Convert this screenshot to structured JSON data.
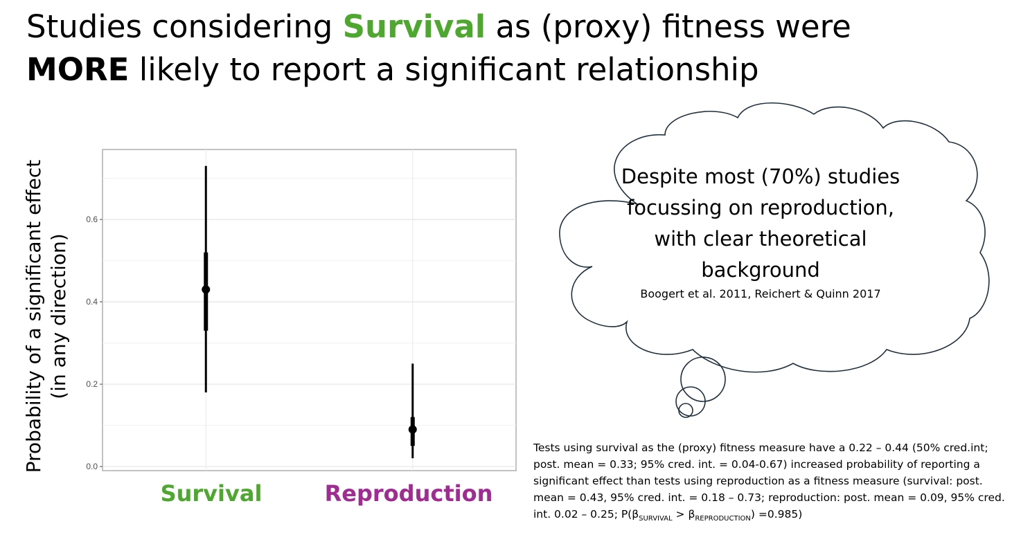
{
  "title": {
    "part1": "Studies considering ",
    "highlight": "Survival",
    "part2": " as (proxy) fitness were",
    "bold": "MORE",
    "part3": " likely to report a significant relationship"
  },
  "colors": {
    "survival": "#4ea72e",
    "reproduction": "#a02b93"
  },
  "chart_data": {
    "type": "scatter",
    "ylabel": "Probability of a significant effect\n(in any direction)",
    "ylim": [
      -0.01,
      0.77
    ],
    "yticks": [
      0.0,
      0.2,
      0.4,
      0.6
    ],
    "ytick_labels": [
      "0.0",
      "0.2",
      "0.4",
      "0.6"
    ],
    "grid": true,
    "categories": [
      "Survival",
      "Reproduction"
    ],
    "points": [
      {
        "category": "Survival",
        "mean": 0.43,
        "ci50": [
          0.33,
          0.52
        ],
        "ci95": [
          0.18,
          0.73
        ]
      },
      {
        "category": "Reproduction",
        "mean": 0.09,
        "ci50": [
          0.05,
          0.12
        ],
        "ci95": [
          0.02,
          0.25
        ]
      }
    ]
  },
  "cloud": {
    "text": "Despite most (70%) studies focussing on reproduction, with clear theoretical background",
    "citation": "Boogert et al. 2011, Reichert & Quinn 2017"
  },
  "footnote": {
    "main": "Tests using survival as the (proxy) fitness measure have a 0.22 – 0.44 (50% cred.int; post. mean = 0.33; 95% cred. int. = 0.04-0.67) increased probability of reporting a significant effect than tests using reproduction as a fitness measure (survival: post. mean = 0.43, 95% cred. int. = 0.18 – 0.73; reproduction: post. mean = 0.09, 95% cred. int. 0.02 – 0.25; P(β",
    "sub1": "SURVIVAL",
    "mid": " > β",
    "sub2": "REPRODUCTION",
    "end": ") =0.985)"
  }
}
